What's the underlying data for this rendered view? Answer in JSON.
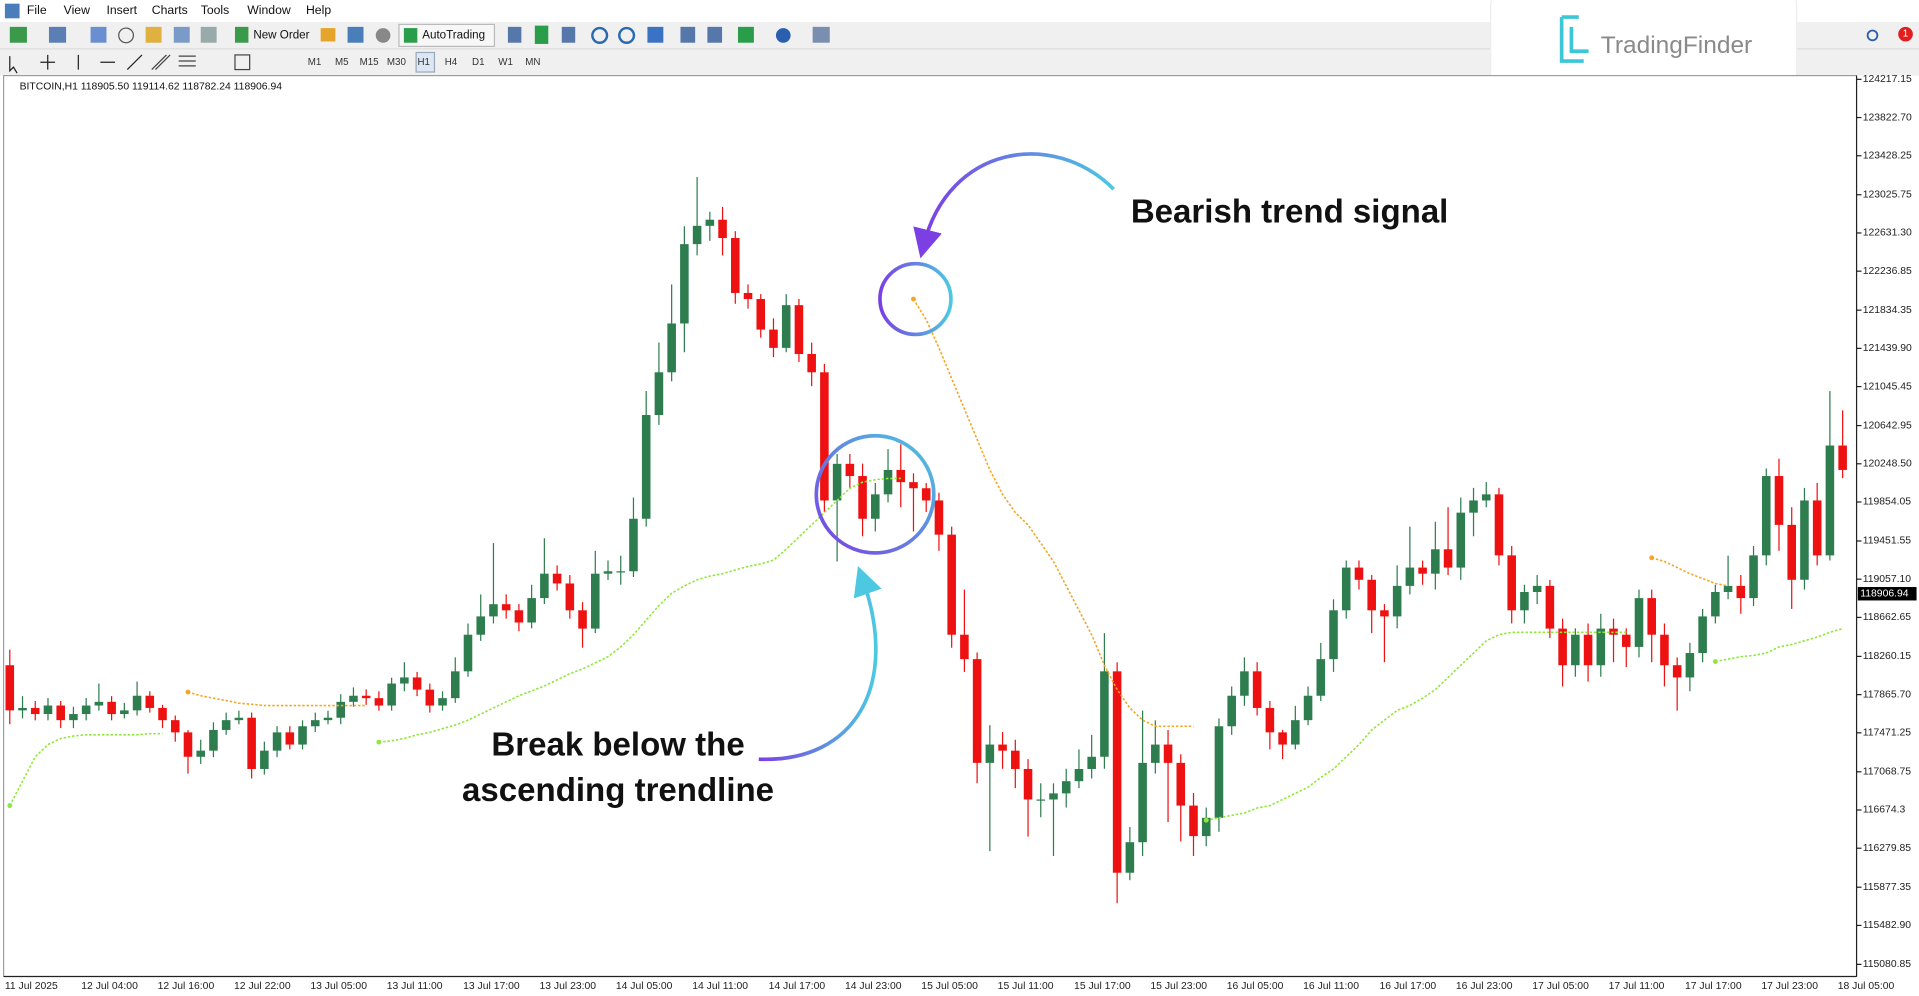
{
  "menu": [
    "File",
    "View",
    "Insert",
    "Charts",
    "Tools",
    "Window",
    "Help"
  ],
  "toolbar": {
    "new_order": "New Order",
    "autotrading": "AutoTrading",
    "timeframes": [
      "M1",
      "M5",
      "M15",
      "M30",
      "H1",
      "H4",
      "D1",
      "W1",
      "MN"
    ]
  },
  "logo": "TradingFinder",
  "notifications": "1",
  "chart_data": {
    "type": "candlestick",
    "symbol_info": "BITCOIN,H1  118905.50 119114.62 118782.24 118906.94",
    "up_color": "#2e7d4f",
    "down_color": "#ee1111",
    "categories": [
      "11 Jul 2025",
      null,
      null,
      null,
      null,
      null,
      "12 Jul 04:00",
      null,
      null,
      null,
      null,
      null,
      "12 Jul 16:00",
      null,
      null,
      null,
      null,
      null,
      "12 Jul 22:00",
      null,
      null,
      null,
      null,
      null,
      "13 Jul 05:00",
      null,
      null,
      null,
      null,
      null,
      "13 Jul 11:00",
      null,
      null,
      null,
      null,
      null,
      "13 Jul 17:00",
      null,
      null,
      null,
      null,
      null,
      "13 Jul 23:00",
      null,
      null,
      null,
      null,
      null,
      "14 Jul 05:00",
      null,
      null,
      null,
      null,
      null,
      "14 Jul 11:00",
      null,
      null,
      null,
      null,
      null,
      "14 Jul 17:00",
      null,
      null,
      null,
      null,
      null,
      "14 Jul 23:00",
      null,
      null,
      null,
      null,
      null,
      "15 Jul 05:00",
      null,
      null,
      null,
      null,
      null,
      "15 Jul 11:00",
      null,
      null,
      null,
      null,
      null,
      "15 Jul 17:00",
      null,
      null,
      null,
      null,
      null,
      "15 Jul 23:00",
      null,
      null,
      null,
      null,
      null,
      "16 Jul 05:00",
      null,
      null,
      null,
      null,
      null,
      "16 Jul 11:00",
      null,
      null,
      null,
      null,
      null,
      "16 Jul 17:00",
      null,
      null,
      null,
      null,
      null,
      "16 Jul 23:00",
      null,
      null,
      null,
      null,
      null,
      "17 Jul 05:00",
      null,
      null,
      null,
      null,
      null,
      "17 Jul 11:00",
      null,
      null,
      null,
      null,
      null,
      "17 Jul 17:00",
      null,
      null,
      null,
      null,
      null,
      "17 Jul 23:00",
      null,
      null,
      null,
      null,
      null,
      "18 Jul 05:00"
    ],
    "open": [
      118169,
      117703,
      117728,
      117665,
      117753,
      117602,
      117665,
      117753,
      117791,
      117665,
      117703,
      117854,
      117728,
      117602,
      117476,
      117224,
      117287,
      117501,
      117602,
      117627,
      117098,
      117287,
      117476,
      117350,
      117539,
      117602,
      117627,
      117791,
      117854,
      117829,
      117753,
      117980,
      118043,
      117917,
      117753,
      117829,
      118106,
      118484,
      118673,
      118799,
      118736,
      118610,
      118862,
      119114,
      119013,
      118736,
      118547,
      119114,
      119139,
      119139,
      119681,
      120752,
      121193,
      121697,
      122516,
      122705,
      122768,
      122579,
      122012,
      121949,
      121634,
      121445,
      121886,
      121382,
      121193,
      119870,
      120248,
      120122,
      119681,
      119933,
      120185,
      120059,
      119996,
      119870,
      119517,
      118484,
      118232,
      117161,
      117350,
      117287,
      117098,
      116783,
      116783,
      116846,
      116972,
      117098,
      117224,
      118106,
      116027,
      116342,
      117161,
      117350,
      117161,
      116720,
      116405,
      116594,
      117539,
      117854,
      118106,
      117728,
      117476,
      117350,
      117602,
      117854,
      118232,
      118736,
      119177,
      119051,
      118736,
      118673,
      118988,
      119177,
      119114,
      119366,
      119177,
      119744,
      119870,
      119933,
      119303,
      118736,
      118925,
      118988,
      118547,
      118169,
      118484,
      118169,
      118547,
      118484,
      118358,
      118862,
      118484,
      118169,
      118043,
      118295,
      118673,
      118925,
      118988,
      118862,
      119303,
      120122,
      119618,
      119051,
      119870,
      119303,
      120437
    ],
    "high": [
      118330,
      117850,
      117800,
      117830,
      117800,
      117740,
      117830,
      117980,
      117850,
      117780,
      118000,
      117900,
      117760,
      117650,
      117500,
      117400,
      117580,
      117680,
      117700,
      117680,
      117380,
      117540,
      117540,
      117600,
      117680,
      117700,
      117870,
      117940,
      117920,
      117900,
      118040,
      118200,
      118100,
      117980,
      117900,
      118250,
      118600,
      118900,
      119430,
      118900,
      118800,
      119000,
      119480,
      119200,
      119100,
      118820,
      119350,
      119250,
      119300,
      119900,
      121000,
      121500,
      122100,
      122700,
      123209,
      122850,
      122900,
      122650,
      122100,
      122000,
      121750,
      122000,
      121950,
      121500,
      121280,
      120350,
      120350,
      120250,
      120050,
      120400,
      120450,
      120150,
      120050,
      119950,
      119600,
      118950,
      118300,
      117550,
      117480,
      117400,
      117200,
      116950,
      116950,
      117100,
      117300,
      117450,
      118500,
      118200,
      116500,
      117700,
      117600,
      117500,
      117250,
      116850,
      116700,
      117620,
      117950,
      118250,
      118200,
      117800,
      117500,
      117750,
      117950,
      118400,
      118850,
      119250,
      119250,
      119100,
      118800,
      119200,
      119600,
      119250,
      119650,
      119800,
      119900,
      120000,
      120060,
      120000,
      119400,
      119000,
      119100,
      119050,
      118650,
      118550,
      118600,
      118700,
      118650,
      118550,
      118950,
      118950,
      118600,
      118250,
      118400,
      118750,
      119000,
      119300,
      119100,
      119400,
      120200,
      120300,
      119800,
      120000,
      120050,
      121000,
      120800
    ],
    "low": [
      117560,
      117620,
      117600,
      117600,
      117520,
      117520,
      117600,
      117700,
      117600,
      117620,
      117650,
      117680,
      117520,
      117380,
      117050,
      117150,
      117220,
      117450,
      117560,
      117000,
      117040,
      117220,
      117300,
      117300,
      117480,
      117560,
      117560,
      117740,
      117760,
      117700,
      117700,
      117900,
      117850,
      117680,
      117700,
      117780,
      118050,
      118420,
      118600,
      118650,
      118520,
      118550,
      118800,
      118940,
      118650,
      118350,
      118500,
      119050,
      119000,
      119080,
      119600,
      120650,
      121100,
      121400,
      122400,
      122550,
      122400,
      121900,
      121850,
      121550,
      121350,
      121400,
      121300,
      121050,
      119750,
      119240,
      120000,
      119500,
      119550,
      119850,
      119800,
      119550,
      119750,
      119350,
      118350,
      118100,
      116950,
      116250,
      117100,
      116900,
      116400,
      116600,
      116200,
      116700,
      116900,
      117000,
      117100,
      115712,
      115950,
      116200,
      117050,
      116550,
      116350,
      116200,
      116300,
      116450,
      117450,
      117750,
      117650,
      117300,
      117200,
      117300,
      117550,
      117800,
      118100,
      118650,
      118950,
      118500,
      118200,
      118550,
      118900,
      119000,
      118950,
      119100,
      119050,
      119500,
      119800,
      119200,
      118600,
      118600,
      118800,
      118450,
      117950,
      118050,
      118000,
      118050,
      118200,
      118150,
      118250,
      118200,
      117950,
      117700,
      117900,
      118200,
      118600,
      118850,
      118700,
      118780,
      119200,
      119350,
      118750,
      118950,
      119200,
      119250,
      120100
    ],
    "close": [
      117703,
      117728,
      117665,
      117753,
      117602,
      117665,
      117753,
      117791,
      117665,
      117703,
      117854,
      117728,
      117602,
      117476,
      117224,
      117287,
      117501,
      117602,
      117627,
      117098,
      117287,
      117476,
      117350,
      117539,
      117602,
      117627,
      117791,
      117854,
      117829,
      117753,
      117980,
      118043,
      117917,
      117753,
      117829,
      118106,
      118484,
      118673,
      118799,
      118736,
      118610,
      118862,
      119114,
      119013,
      118736,
      118547,
      119114,
      119139,
      119139,
      119681,
      120752,
      121193,
      121697,
      122516,
      122705,
      122768,
      122579,
      122012,
      121949,
      121634,
      121445,
      121886,
      121382,
      121193,
      119870,
      120248,
      120122,
      119681,
      119933,
      120185,
      120059,
      119996,
      119870,
      119517,
      118484,
      118232,
      117161,
      117350,
      117287,
      117098,
      116783,
      116783,
      116846,
      116972,
      117098,
      117224,
      118106,
      116027,
      116342,
      117161,
      117350,
      117161,
      116720,
      116405,
      116594,
      117539,
      117854,
      118106,
      117728,
      117476,
      117350,
      117602,
      117854,
      118232,
      118736,
      119177,
      119051,
      118736,
      118673,
      118988,
      119177,
      119114,
      119366,
      119177,
      119744,
      119870,
      119933,
      119303,
      118736,
      118925,
      118988,
      118547,
      118169,
      118484,
      118169,
      118547,
      118484,
      118358,
      118862,
      118484,
      118169,
      118043,
      118295,
      118673,
      118925,
      118988,
      118862,
      119303,
      120122,
      119618,
      119051,
      119870,
      119303,
      120437,
      120185
    ],
    "series": [
      {
        "color": "#8fe83a",
        "values": [
          116720,
          116972,
          117224,
          117350,
          117413,
          117438,
          117451,
          117451,
          117451,
          117451,
          117451,
          117463,
          117463,
          null,
          null,
          null,
          null,
          null,
          null,
          null,
          null,
          null,
          null,
          null,
          null,
          null,
          null,
          null,
          null,
          117375,
          117388,
          117413,
          117451,
          117476,
          117514,
          117552,
          117602,
          117665,
          117728,
          117791,
          117854,
          117904,
          117955,
          118018,
          118081,
          118131,
          118194,
          118257,
          118358,
          118484,
          118635,
          118786,
          118912,
          118988,
          119051,
          119089,
          119114,
          119152,
          119190,
          119215,
          119253,
          119366,
          119492,
          119618,
          119744,
          119870,
          119996,
          120059,
          120084,
          120097,
          120097,
          null,
          null,
          null,
          null,
          null,
          null,
          null,
          null,
          null,
          null,
          null,
          null,
          null,
          null,
          null,
          null,
          null,
          null,
          null,
          null,
          null,
          null,
          null,
          116569,
          116594,
          116619,
          116644,
          116695,
          116720,
          116783,
          116846,
          116909,
          117010,
          117098,
          117224,
          117350,
          117501,
          117602,
          117703,
          117753,
          117829,
          117917,
          118043,
          118169,
          118295,
          118421,
          118484,
          118509,
          118509,
          118509,
          118509,
          118509,
          118509,
          118509,
          118509,
          118509,
          118509,
          null,
          null,
          null,
          null,
          null,
          null,
          118207,
          118232,
          118257,
          118270,
          118295,
          118358,
          118383,
          118421,
          118459,
          118509,
          118547
        ]
      },
      {
        "color": "#f5a623",
        "values": [
          null,
          null,
          null,
          null,
          null,
          null,
          null,
          null,
          null,
          null,
          null,
          null,
          null,
          null,
          117892,
          117854,
          117829,
          117804,
          117778,
          117766,
          117753,
          117753,
          117753,
          117753,
          117753,
          117753,
          117753,
          117753,
          117753,
          null,
          null,
          null,
          null,
          null,
          null,
          null,
          null,
          null,
          null,
          null,
          null,
          null,
          null,
          null,
          null,
          null,
          null,
          null,
          null,
          null,
          null,
          null,
          null,
          null,
          null,
          null,
          null,
          null,
          null,
          null,
          null,
          null,
          null,
          null,
          null,
          null,
          null,
          null,
          null,
          null,
          null,
          121949,
          121735,
          121445,
          121130,
          120815,
          120500,
          120185,
          119933,
          119744,
          119618,
          119429,
          119240,
          118988,
          118736,
          118484,
          118169,
          117917,
          117728,
          117602,
          117539,
          117539,
          117539,
          117539,
          null,
          null,
          null,
          null,
          null,
          null,
          null,
          null,
          null,
          null,
          null,
          null,
          null,
          null,
          null,
          null,
          null,
          null,
          null,
          null,
          null,
          null,
          null,
          null,
          null,
          null,
          null,
          null,
          null,
          null,
          null,
          null,
          null,
          null,
          null,
          119278,
          119240,
          119177,
          119114,
          119064,
          119013,
          118988,
          null,
          null,
          null,
          null,
          null,
          null,
          null,
          null,
          null
        ]
      }
    ],
    "ylim": [
      114956,
      124255
    ],
    "yticks": [
      124217.15,
      {
        "value": 123822.7,
        "label": "123822.70"
      },
      123428.25,
      123025.75,
      {
        "value": 122631.3,
        "label": "122631.30"
      },
      122236.85,
      121834.35,
      {
        "value": 121439.9,
        "label": "121439.90"
      },
      121045.45,
      120642.95,
      {
        "value": 120248.5,
        "label": "120248.50"
      },
      119854.05,
      119451.55,
      {
        "value": 119057.1,
        "label": "119057.10"
      },
      118662.65,
      118260.15,
      {
        "value": 117865.7,
        "label": "117865.70"
      },
      117471.25,
      117068.75,
      116674.3,
      116279.85,
      115877.35,
      {
        "value": 115482.9,
        "label": "115482.90"
      },
      115080.85
    ],
    "current_price": 118906.94,
    "annotations": {
      "bearish": "Bearish trend signal",
      "break": [
        "Break below the",
        "ascending trendline"
      ]
    }
  }
}
